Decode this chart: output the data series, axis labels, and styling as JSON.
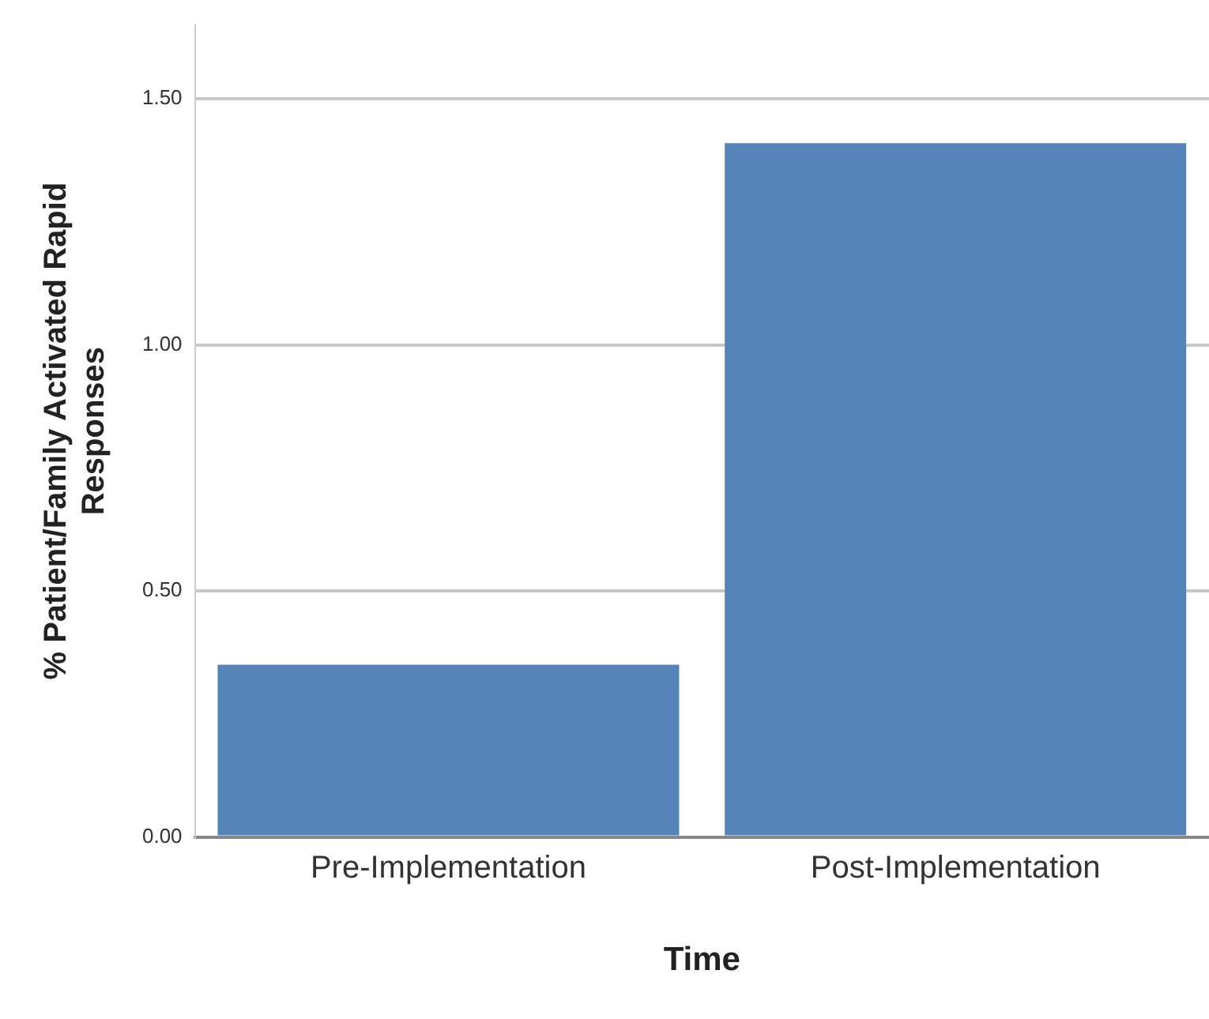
{
  "chart_data": {
    "type": "bar",
    "xlabel": "Time",
    "ylabel": "% Patient/Family Activated Rapid Responses",
    "categories": [
      "Pre-Implementation",
      "Post-Implementation"
    ],
    "values": [
      0.35,
      1.41
    ],
    "color": "#5584b8",
    "ylim": [
      0,
      1.65
    ],
    "yticks": [
      {
        "value": 0,
        "label": "0.00"
      },
      {
        "value": 0.5,
        "label": "0.50"
      },
      {
        "value": 1,
        "label": "1.00"
      },
      {
        "value": 1.5,
        "label": "1.50"
      }
    ],
    "grid": "y"
  }
}
